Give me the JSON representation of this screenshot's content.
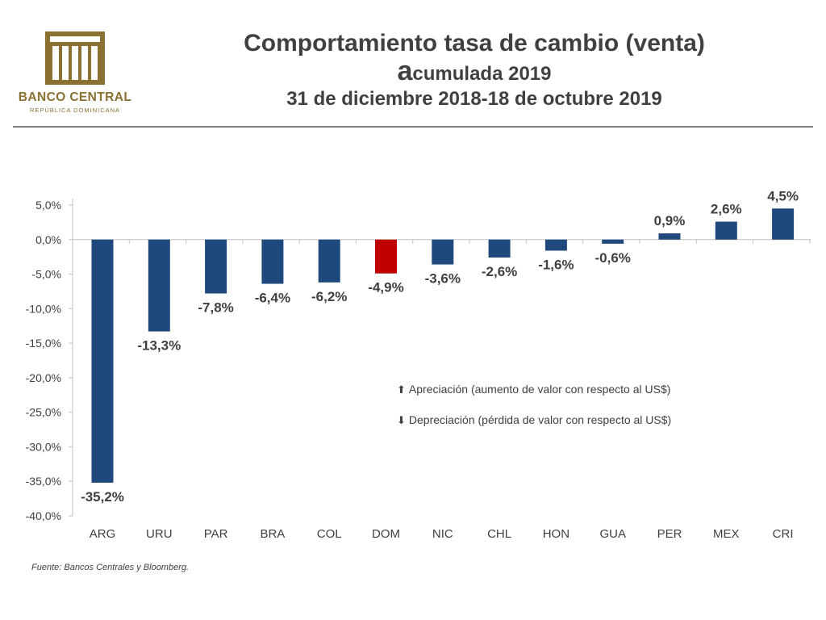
{
  "header": {
    "title_line1": "Comportamiento tasa de cambio (venta)",
    "title_line2_first": "a",
    "title_line2_rest": "cumulada 2019",
    "title_line3": "31 de diciembre 2018-18 de octubre 2019"
  },
  "logo": {
    "name": "BANCO CENTRAL",
    "subtitle": "REPÚBLICA DOMINICANA",
    "color": "#8a7132"
  },
  "legend": {
    "appreciation": {
      "icon": "up-arrow-icon",
      "glyph": "⬆",
      "label": "Apreciación (aumento de valor con respecto al US$)"
    },
    "depreciation": {
      "icon": "down-arrow-icon",
      "glyph": "⬇",
      "label": "Depreciación (pérdida de valor con respecto al US$)"
    }
  },
  "source": "Fuente: Bancos Centrales y Bloomberg.",
  "colors": {
    "bar": "#1f497d",
    "highlight": "#c00000",
    "axis": "#bfbfbf"
  },
  "chart_data": {
    "type": "bar",
    "categories": [
      "ARG",
      "URU",
      "PAR",
      "BRA",
      "COL",
      "DOM",
      "NIC",
      "CHL",
      "HON",
      "GUA",
      "PER",
      "MEX",
      "CRI"
    ],
    "values": [
      -35.2,
      -13.3,
      -7.8,
      -6.4,
      -6.2,
      -4.9,
      -3.6,
      -2.6,
      -1.6,
      -0.6,
      0.9,
      2.6,
      4.5
    ],
    "data_labels": [
      "-35,2%",
      "-13,3%",
      "-7,8%",
      "-6,4%",
      "-6,2%",
      "-4,9%",
      "-3,6%",
      "-2,6%",
      "-1,6%",
      "-0,6%",
      "0,9%",
      "2,6%",
      "4,5%"
    ],
    "highlight_category": "DOM",
    "y_ticks": [
      5,
      0,
      -5,
      -10,
      -15,
      -20,
      -25,
      -30,
      -35,
      -40
    ],
    "y_tick_labels": [
      "5,0%",
      "0,0%",
      "-5,0%",
      "-10,0%",
      "-15,0%",
      "-20,0%",
      "-25,0%",
      "-30,0%",
      "-35,0%",
      "-40,0%"
    ],
    "ylim": [
      -40,
      5
    ],
    "title": "Comportamiento tasa de cambio (venta) acumulada 2019",
    "xlabel": "",
    "ylabel": "",
    "grid": false
  }
}
